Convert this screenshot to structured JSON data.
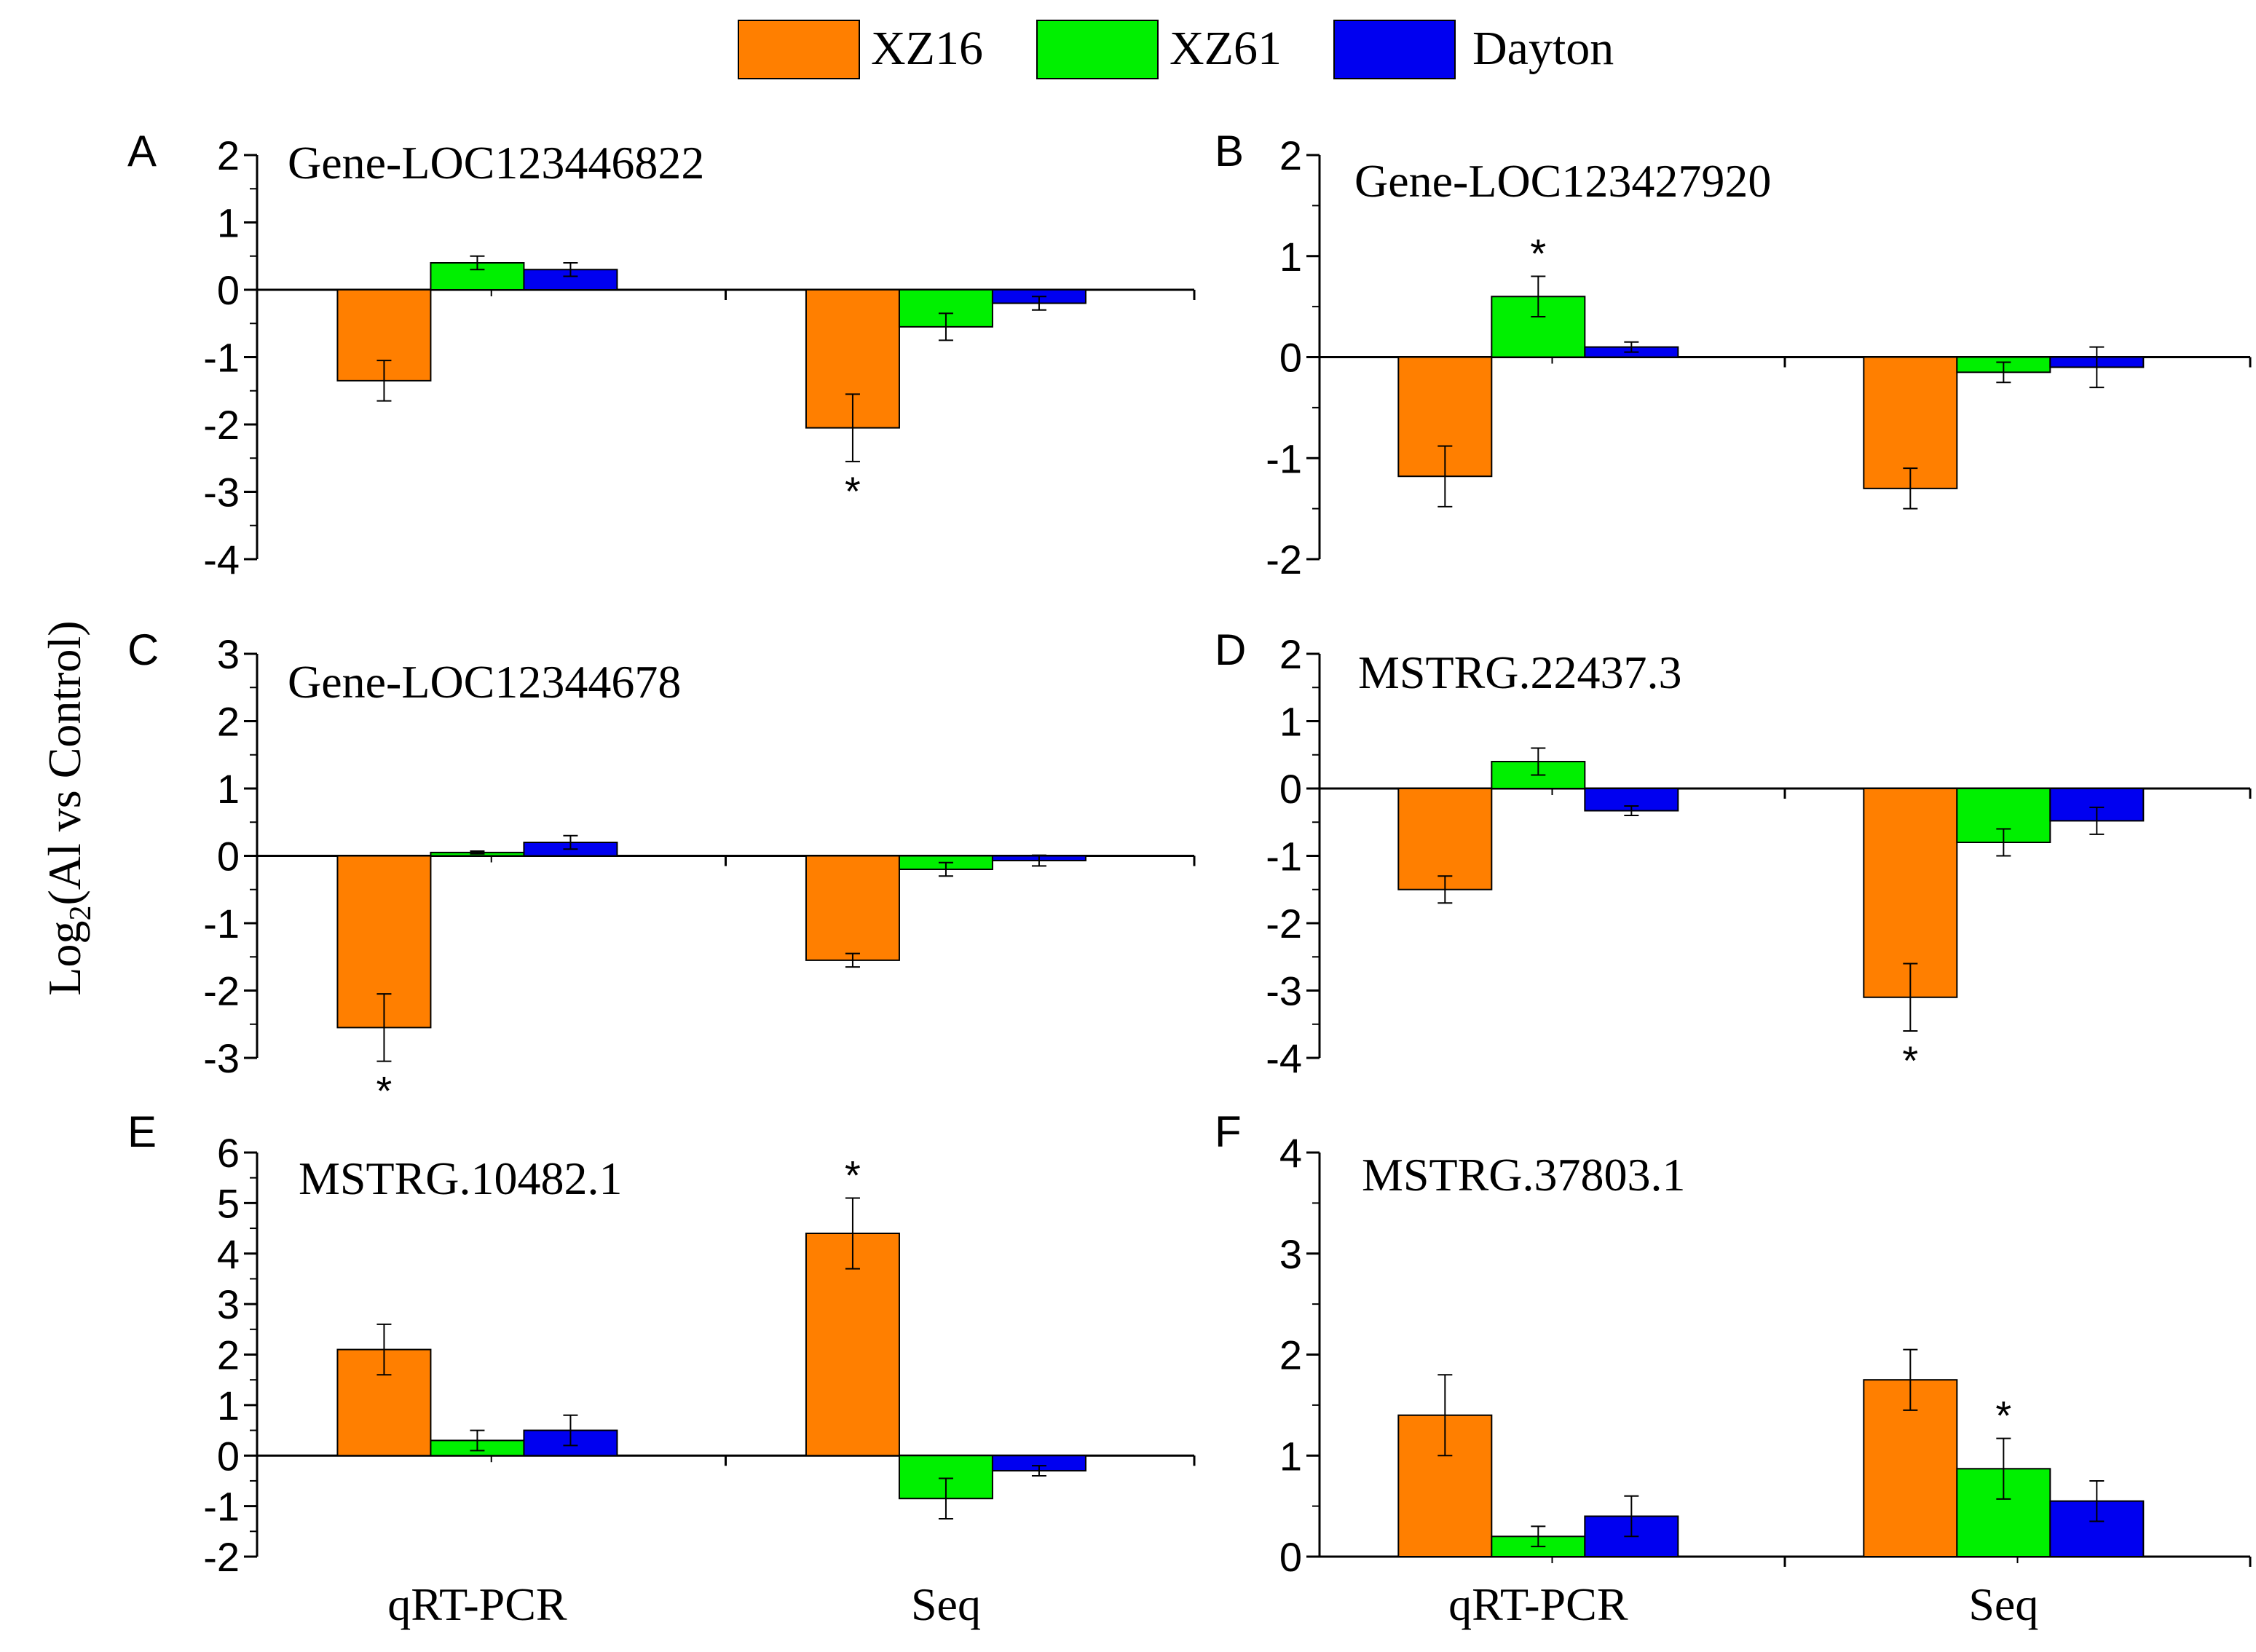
{
  "legend": {
    "items": [
      {
        "name": "XZ16",
        "color": "#FF7F00"
      },
      {
        "name": "XZ61",
        "color": "#00F000"
      },
      {
        "name": "Dayton",
        "color": "#0000F0"
      }
    ]
  },
  "y_axis_title": {
    "prefix": "Log",
    "subscript": "2",
    "suffix": "(Al vs Control)"
  },
  "chart_data": [
    {
      "type": "bar",
      "panel": "A",
      "title": "Gene-LOC123446822",
      "categories": [
        "qRT-PCR",
        "Seq"
      ],
      "ylim": [
        -4,
        2
      ],
      "yticks": [
        "2",
        "1",
        "0",
        "-1",
        "-2",
        "-3",
        "-4"
      ],
      "series": [
        {
          "name": "XZ16",
          "values": [
            -1.35,
            -2.05
          ],
          "errors": [
            0.3,
            0.5
          ],
          "significant": [
            false,
            true
          ]
        },
        {
          "name": "XZ61",
          "values": [
            0.4,
            -0.55
          ],
          "errors": [
            0.1,
            0.2
          ],
          "significant": [
            false,
            false
          ]
        },
        {
          "name": "Dayton",
          "values": [
            0.3,
            -0.2
          ],
          "errors": [
            0.1,
            0.1
          ],
          "significant": [
            false,
            false
          ]
        }
      ]
    },
    {
      "type": "bar",
      "panel": "B",
      "title": "Gene-LOC123427920",
      "categories": [
        "qRT-PCR",
        "Seq"
      ],
      "ylim": [
        -2,
        2
      ],
      "yticks": [
        "2",
        "1",
        "0",
        "-1",
        "-2"
      ],
      "series": [
        {
          "name": "XZ16",
          "values": [
            -1.18,
            -1.3
          ],
          "errors": [
            0.3,
            0.2
          ],
          "significant": [
            false,
            false
          ]
        },
        {
          "name": "XZ61",
          "values": [
            0.6,
            -0.15
          ],
          "errors": [
            0.2,
            0.1
          ],
          "significant": [
            true,
            false
          ]
        },
        {
          "name": "Dayton",
          "values": [
            0.1,
            -0.1
          ],
          "errors": [
            0.05,
            0.2
          ],
          "significant": [
            false,
            false
          ]
        }
      ]
    },
    {
      "type": "bar",
      "panel": "C",
      "title": "Gene-LOC12344678",
      "categories": [
        "qRT-PCR",
        "Seq"
      ],
      "ylim": [
        -3,
        3
      ],
      "yticks": [
        "3",
        "2",
        "1",
        "0",
        "-1",
        "-2",
        "-3"
      ],
      "series": [
        {
          "name": "XZ16",
          "values": [
            -2.55,
            -1.55
          ],
          "errors": [
            0.5,
            0.1
          ],
          "significant": [
            true,
            false
          ]
        },
        {
          "name": "XZ61",
          "values": [
            0.05,
            -0.2
          ],
          "errors": [
            0.02,
            0.1
          ],
          "significant": [
            false,
            false
          ]
        },
        {
          "name": "Dayton",
          "values": [
            0.2,
            -0.07
          ],
          "errors": [
            0.1,
            0.08
          ],
          "significant": [
            false,
            false
          ]
        }
      ]
    },
    {
      "type": "bar",
      "panel": "D",
      "title": "MSTRG.22437.3",
      "categories": [
        "qRT-PCR",
        "Seq"
      ],
      "ylim": [
        -4,
        2
      ],
      "yticks": [
        "2",
        "1",
        "0",
        "-1",
        "-2",
        "-3",
        "-4"
      ],
      "series": [
        {
          "name": "XZ16",
          "values": [
            -1.5,
            -3.1
          ],
          "errors": [
            0.2,
            0.5
          ],
          "significant": [
            false,
            true
          ]
        },
        {
          "name": "XZ61",
          "values": [
            0.4,
            -0.8
          ],
          "errors": [
            0.2,
            0.2
          ],
          "significant": [
            false,
            false
          ]
        },
        {
          "name": "Dayton",
          "values": [
            -0.33,
            -0.48
          ],
          "errors": [
            0.07,
            0.2
          ],
          "significant": [
            false,
            false
          ]
        }
      ]
    },
    {
      "type": "bar",
      "panel": "E",
      "title": "MSTRG.10482.1",
      "categories": [
        "qRT-PCR",
        "Seq"
      ],
      "ylim": [
        -2,
        6
      ],
      "yticks": [
        "6",
        "5",
        "4",
        "3",
        "2",
        "1",
        "0",
        "-1",
        "-2"
      ],
      "xlabels_shown": true,
      "series": [
        {
          "name": "XZ16",
          "values": [
            2.1,
            4.4
          ],
          "errors": [
            0.5,
            0.7
          ],
          "significant": [
            false,
            true
          ]
        },
        {
          "name": "XZ61",
          "values": [
            0.3,
            -0.85
          ],
          "errors": [
            0.2,
            0.4
          ],
          "significant": [
            false,
            false
          ]
        },
        {
          "name": "Dayton",
          "values": [
            0.5,
            -0.3
          ],
          "errors": [
            0.3,
            0.1
          ],
          "significant": [
            false,
            false
          ]
        }
      ]
    },
    {
      "type": "bar",
      "panel": "F",
      "title": "MSTRG.37803.1",
      "categories": [
        "qRT-PCR",
        "Seq"
      ],
      "ylim": [
        0,
        4
      ],
      "yticks": [
        "4",
        "3",
        "2",
        "1",
        "0"
      ],
      "xlabels_shown": true,
      "series": [
        {
          "name": "XZ16",
          "values": [
            1.4,
            1.75
          ],
          "errors": [
            0.4,
            0.3
          ],
          "significant": [
            false,
            false
          ]
        },
        {
          "name": "XZ61",
          "values": [
            0.2,
            0.87
          ],
          "errors": [
            0.1,
            0.3
          ],
          "significant": [
            false,
            true
          ]
        },
        {
          "name": "Dayton",
          "values": [
            0.4,
            0.55
          ],
          "errors": [
            0.2,
            0.2
          ],
          "significant": [
            false,
            false
          ]
        }
      ]
    }
  ]
}
